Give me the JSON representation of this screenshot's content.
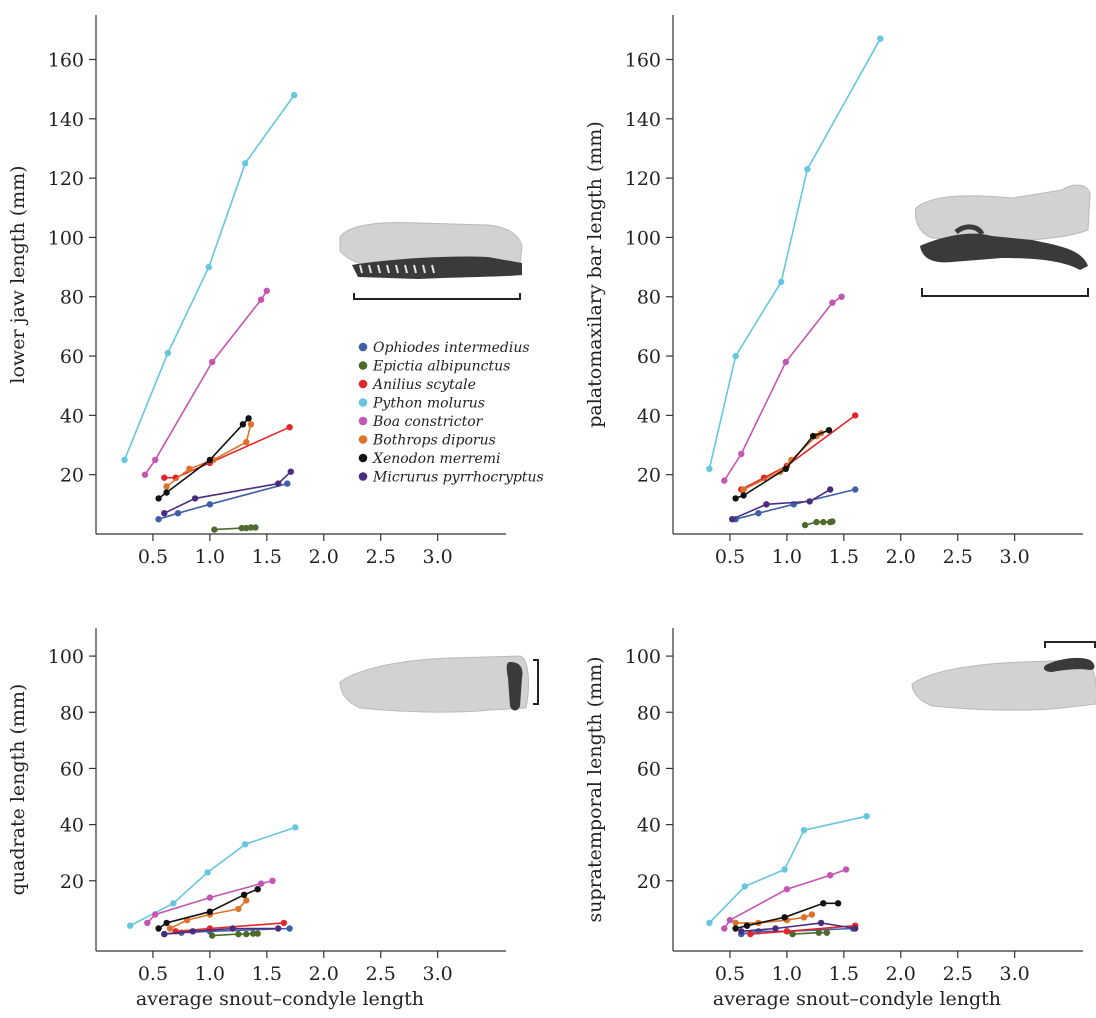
{
  "legend": [
    {
      "name": "Ophiodes intermedius",
      "color": "#3f5faa"
    },
    {
      "name": "Epictia albipunctus",
      "color": "#4d6b2c"
    },
    {
      "name": "Anilius scytale",
      "color": "#e3262a"
    },
    {
      "name": "Python molurus",
      "color": "#66c5e0"
    },
    {
      "name": "Boa constrictor",
      "color": "#c455b3"
    },
    {
      "name": "Bothrops diporus",
      "color": "#df7229"
    },
    {
      "name": "Xenodon merremi",
      "color": "#111111"
    },
    {
      "name": "Micrurus pyrrhocryptus",
      "color": "#4b2c7e"
    }
  ],
  "chart_data": [
    {
      "type": "line",
      "ylabel": "lower jaw length (mm)",
      "xlabel": "",
      "xlim": [
        0.0,
        3.6
      ],
      "ylim": [
        0,
        175
      ],
      "xticks": [
        "0.5",
        "1.0",
        "1.5",
        "2.0",
        "2.5",
        "3.0"
      ],
      "yticks": [
        "20",
        "40",
        "60",
        "80",
        "100",
        "120",
        "140",
        "160"
      ],
      "inset_icon": "snake-skull-lower-jaw-highlight",
      "has_legend": true,
      "series": [
        {
          "name": "Ophiodes intermedius",
          "x": [
            0.55,
            0.72,
            1.0,
            1.68
          ],
          "y": [
            5,
            7,
            10,
            17
          ]
        },
        {
          "name": "Epictia albipunctus",
          "x": [
            1.04,
            1.28,
            1.32,
            1.36,
            1.4
          ],
          "y": [
            1.5,
            2,
            2,
            2.2,
            2.2
          ]
        },
        {
          "name": "Anilius scytale",
          "x": [
            0.6,
            0.7,
            1.0,
            1.7
          ],
          "y": [
            19,
            19,
            24,
            36
          ]
        },
        {
          "name": "Python molurus",
          "x": [
            0.25,
            0.63,
            0.99,
            1.31,
            1.74
          ],
          "y": [
            25,
            61,
            90,
            125,
            148
          ]
        },
        {
          "name": "Boa constrictor",
          "x": [
            0.43,
            0.52,
            1.02,
            1.45,
            1.5
          ],
          "y": [
            20,
            25,
            58,
            79,
            82
          ]
        },
        {
          "name": "Bothrops diporus",
          "x": [
            0.62,
            0.82,
            1.03,
            1.32,
            1.36
          ],
          "y": [
            16,
            22,
            25,
            31,
            37
          ]
        },
        {
          "name": "Xenodon merremi",
          "x": [
            0.55,
            0.62,
            1.0,
            1.29,
            1.34
          ],
          "y": [
            12,
            14,
            25,
            37,
            39
          ]
        },
        {
          "name": "Micrurus pyrrhocryptus",
          "x": [
            0.6,
            0.87,
            1.6,
            1.71
          ],
          "y": [
            7,
            12,
            17,
            21
          ]
        }
      ]
    },
    {
      "type": "line",
      "ylabel": "palatomaxilary bar length (mm)",
      "xlabel": "",
      "xlim": [
        0.0,
        3.6
      ],
      "ylim": [
        0,
        175
      ],
      "xticks": [
        "0.5",
        "1.0",
        "1.5",
        "2.0",
        "2.5",
        "3.0"
      ],
      "yticks": [
        "20",
        "40",
        "60",
        "80",
        "100",
        "120",
        "140",
        "160"
      ],
      "inset_icon": "snake-skull-palatomaxillary-highlight",
      "has_legend": false,
      "series": [
        {
          "name": "Ophiodes intermedius",
          "x": [
            0.55,
            0.75,
            1.06,
            1.6
          ],
          "y": [
            5,
            7,
            10,
            15
          ]
        },
        {
          "name": "Epictia albipunctus",
          "x": [
            1.16,
            1.26,
            1.32,
            1.38,
            1.4
          ],
          "y": [
            3,
            4,
            4,
            4,
            4.2
          ]
        },
        {
          "name": "Anilius scytale",
          "x": [
            0.6,
            0.8,
            1.0,
            1.6
          ],
          "y": [
            15,
            19,
            23,
            40
          ]
        },
        {
          "name": "Python molurus",
          "x": [
            0.32,
            0.55,
            0.95,
            1.18,
            1.82
          ],
          "y": [
            22,
            60,
            85,
            123,
            167
          ]
        },
        {
          "name": "Boa constrictor",
          "x": [
            0.45,
            0.6,
            0.99,
            1.4,
            1.48
          ],
          "y": [
            18,
            27,
            58,
            78,
            80
          ]
        },
        {
          "name": "Bothrops diporus",
          "x": [
            0.62,
            0.94,
            1.04,
            1.26,
            1.3
          ],
          "y": [
            15,
            21,
            25,
            33,
            34
          ]
        },
        {
          "name": "Xenodon merremi",
          "x": [
            0.55,
            0.62,
            0.99,
            1.23,
            1.37
          ],
          "y": [
            12,
            13,
            22,
            33,
            35
          ]
        },
        {
          "name": "Micrurus pyrrhocryptus",
          "x": [
            0.52,
            0.82,
            1.2,
            1.38
          ],
          "y": [
            5,
            10,
            11,
            15
          ]
        }
      ]
    },
    {
      "type": "line",
      "ylabel": "quadrate length (mm)",
      "xlabel": "average snout–condyle length",
      "xlim": [
        0.0,
        3.6
      ],
      "ylim": [
        -5,
        110
      ],
      "xticks": [
        "0.5",
        "1.0",
        "1.5",
        "2.0",
        "2.5",
        "3.0"
      ],
      "yticks": [
        "20",
        "40",
        "60",
        "80",
        "100"
      ],
      "inset_icon": "snake-skull-quadrate-highlight",
      "has_legend": false,
      "series": [
        {
          "name": "Ophiodes intermedius",
          "x": [
            0.6,
            0.75,
            1.0,
            1.7
          ],
          "y": [
            1,
            1.5,
            2,
            3
          ]
        },
        {
          "name": "Epictia albipunctus",
          "x": [
            1.02,
            1.25,
            1.32,
            1.38,
            1.42
          ],
          "y": [
            0.5,
            1,
            1,
            1.2,
            1.2
          ]
        },
        {
          "name": "Anilius scytale",
          "x": [
            0.7,
            1.0,
            1.65
          ],
          "y": [
            2,
            3,
            5
          ]
        },
        {
          "name": "Python molurus",
          "x": [
            0.3,
            0.68,
            0.98,
            1.31,
            1.75
          ],
          "y": [
            4,
            12,
            23,
            33,
            39
          ]
        },
        {
          "name": "Boa constrictor",
          "x": [
            0.45,
            0.52,
            1.0,
            1.45,
            1.55
          ],
          "y": [
            5,
            8,
            14,
            19,
            20
          ]
        },
        {
          "name": "Bothrops diporus",
          "x": [
            0.65,
            0.8,
            1.0,
            1.25,
            1.32
          ],
          "y": [
            3,
            6,
            8,
            10,
            13
          ]
        },
        {
          "name": "Xenodon merremi",
          "x": [
            0.55,
            0.62,
            1.0,
            1.3,
            1.42
          ],
          "y": [
            3,
            5,
            9,
            15,
            17
          ]
        },
        {
          "name": "Micrurus pyrrhocryptus",
          "x": [
            0.6,
            0.85,
            1.2,
            1.6
          ],
          "y": [
            1,
            2,
            3,
            3
          ]
        }
      ]
    },
    {
      "type": "line",
      "ylabel": "supratemporal length (mm)",
      "xlabel": "average snout–condyle length",
      "xlim": [
        0.0,
        3.6
      ],
      "ylim": [
        -5,
        110
      ],
      "xticks": [
        "0.5",
        "1.0",
        "1.5",
        "2.0",
        "2.5",
        "3.0"
      ],
      "yticks": [
        "20",
        "40",
        "60",
        "80",
        "100"
      ],
      "inset_icon": "snake-skull-supratemporal-highlight",
      "has_legend": false,
      "series": [
        {
          "name": "Ophiodes intermedius",
          "x": [
            0.6,
            0.75,
            1.0,
            1.58
          ],
          "y": [
            1,
            2,
            2,
            3
          ]
        },
        {
          "name": "Epictia albipunctus",
          "x": [
            1.05,
            1.28,
            1.35
          ],
          "y": [
            1,
            1.5,
            1.5
          ]
        },
        {
          "name": "Anilius scytale",
          "x": [
            0.68,
            1.0,
            1.6
          ],
          "y": [
            1,
            2,
            4
          ]
        },
        {
          "name": "Python molurus",
          "x": [
            0.32,
            0.63,
            0.98,
            1.15,
            1.7
          ],
          "y": [
            5,
            18,
            24,
            38,
            43
          ]
        },
        {
          "name": "Boa constrictor",
          "x": [
            0.45,
            0.5,
            1.0,
            1.38,
            1.52
          ],
          "y": [
            3,
            6,
            17,
            22,
            24
          ]
        },
        {
          "name": "Bothrops diporus",
          "x": [
            0.55,
            0.75,
            1.0,
            1.15,
            1.22
          ],
          "y": [
            5,
            5,
            6,
            7,
            8
          ]
        },
        {
          "name": "Xenodon merremi",
          "x": [
            0.55,
            0.65,
            0.98,
            1.32,
            1.45
          ],
          "y": [
            3,
            4,
            7,
            12,
            12
          ]
        },
        {
          "name": "Micrurus pyrrhocryptus",
          "x": [
            0.6,
            0.9,
            1.3,
            1.6
          ],
          "y": [
            2,
            3,
            5,
            3
          ]
        }
      ]
    }
  ]
}
